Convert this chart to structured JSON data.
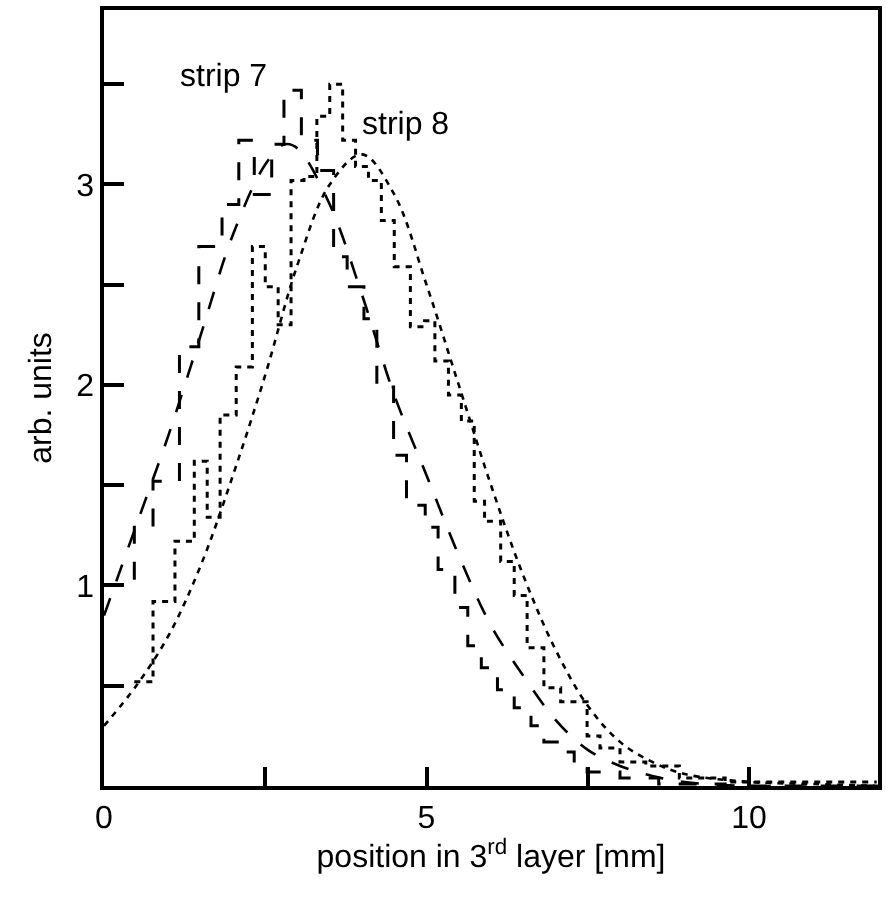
{
  "chart_data": {
    "type": "step",
    "xlabel": "position in 3$^{rd}$ layer [mm]",
    "ylabel": "arb. units",
    "xlim": [
      0,
      12
    ],
    "ylim": [
      0,
      3.87
    ],
    "xticks": [
      0,
      {
        "value": 2.5,
        "label": null
      },
      5,
      {
        "value": 7.5,
        "label": null
      },
      10
    ],
    "yticks": [
      {
        "value": 0.5,
        "label": null
      },
      1,
      {
        "value": 1.5,
        "label": null
      },
      2,
      {
        "value": 2.5,
        "label": null
      },
      3,
      {
        "value": 3.5,
        "label": null
      }
    ],
    "legend": false,
    "series": [
      {
        "name": "strip 7",
        "color": "#000000",
        "line_style": "dashed",
        "x": [
          0.0,
          0.47,
          0.76,
          1.17,
          1.47,
          1.83,
          2.09,
          2.33,
          2.6,
          2.79,
          3.06,
          3.31,
          3.56,
          3.77,
          4.03,
          4.23,
          4.49,
          4.69,
          4.98,
          5.18,
          5.44,
          5.64,
          5.85,
          6.1,
          6.36,
          6.62,
          6.82,
          7.08,
          7.29,
          7.49,
          8.0,
          8.6,
          9.63,
          12.0
        ],
        "values": [
          1.0,
          1.29,
          1.52,
          2.19,
          2.69,
          2.9,
          3.22,
          2.95,
          3.2,
          3.47,
          3.22,
          3.07,
          2.64,
          2.49,
          2.33,
          1.99,
          1.65,
          1.4,
          1.29,
          1.08,
          0.89,
          0.7,
          0.59,
          0.48,
          0.39,
          0.3,
          0.22,
          0.17,
          0.1,
          0.07,
          0.04,
          0.01,
          0.0,
          0.0
        ]
      },
      {
        "name": "strip 8",
        "color": "#000000",
        "line_style": "dotted",
        "x": [
          0.47,
          0.76,
          1.1,
          1.4,
          1.6,
          1.8,
          2.05,
          2.3,
          2.5,
          2.7,
          2.9,
          3.1,
          3.3,
          3.5,
          3.7,
          3.9,
          4.1,
          4.3,
          4.5,
          4.75,
          4.97,
          5.13,
          5.34,
          5.54,
          5.74,
          5.9,
          6.15,
          6.36,
          6.56,
          6.82,
          7.08,
          7.49,
          7.69,
          8.0,
          8.4,
          8.92,
          9.63,
          11.98
        ],
        "values": [
          0.52,
          0.92,
          1.22,
          1.62,
          1.34,
          1.85,
          2.09,
          2.69,
          2.49,
          2.3,
          3.02,
          3.04,
          3.34,
          3.5,
          3.22,
          3.09,
          3.02,
          2.82,
          2.59,
          2.29,
          2.32,
          2.12,
          1.95,
          1.82,
          1.42,
          1.32,
          1.12,
          0.95,
          0.69,
          0.49,
          0.42,
          0.25,
          0.19,
          0.12,
          0.1,
          0.04,
          0.02,
          0.02
        ]
      },
      {
        "type": "line",
        "color": "#000000",
        "line_style": "dashed",
        "x": [
          0,
          0.5,
          1,
          1.5,
          2,
          2.5,
          2.8,
          3,
          3.5,
          4,
          4.5,
          5,
          5.5,
          6,
          6.5,
          7,
          7.5,
          8,
          8.5,
          9,
          10,
          12
        ],
        "values": [
          0.85,
          1.3,
          1.75,
          2.25,
          2.75,
          3.1,
          3.2,
          3.18,
          2.9,
          2.45,
          1.95,
          1.55,
          1.15,
          0.8,
          0.55,
          0.33,
          0.18,
          0.1,
          0.05,
          0.02,
          0.0,
          0.0
        ]
      },
      {
        "type": "line",
        "color": "#000000",
        "line_style": "dotted",
        "x": [
          0,
          0.5,
          1,
          1.5,
          2,
          2.5,
          3,
          3.5,
          4,
          4.5,
          5,
          5.5,
          6,
          6.5,
          7,
          7.5,
          8,
          8.5,
          9,
          10,
          11,
          12
        ],
        "values": [
          0.3,
          0.5,
          0.75,
          1.1,
          1.55,
          2.05,
          2.6,
          3.0,
          3.15,
          2.95,
          2.5,
          2.0,
          1.5,
          1.05,
          0.68,
          0.4,
          0.22,
          0.12,
          0.06,
          0.02,
          0.01,
          0.0
        ]
      }
    ]
  }
}
